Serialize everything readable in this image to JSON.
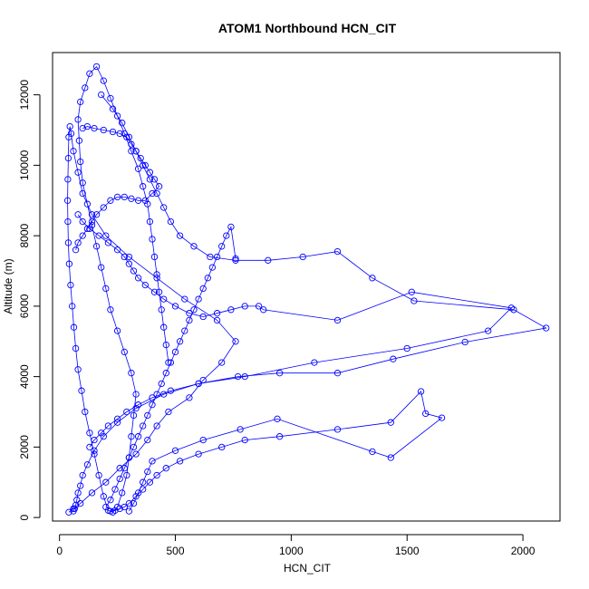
{
  "chart_data": {
    "type": "line",
    "title": "ATOM1 Northbound HCN_CIT",
    "xlabel": "HCN_CIT",
    "ylabel": "Altitude (m)",
    "xlim": [
      -30,
      2160
    ],
    "ylim": [
      -100,
      13200
    ],
    "x_ticks": [
      0,
      500,
      1000,
      1500,
      2000
    ],
    "y_ticks": [
      0,
      2000,
      4000,
      6000,
      8000,
      10000,
      12000
    ],
    "x_tick_labels": [
      "0",
      "500",
      "1000",
      "1500",
      "2000"
    ],
    "y_tick_labels": [
      "0",
      "2000",
      "4000",
      "6000",
      "8000",
      "10000",
      "12000"
    ],
    "grid": false,
    "legend": "none",
    "series_color": "#0000ff",
    "marker": "open-circle",
    "series": [
      {
        "x": [
          40,
          60,
          90,
          140,
          200,
          260,
          330,
          380,
          420,
          470,
          560,
          620,
          700,
          760,
          680,
          540,
          420,
          300,
          200,
          140,
          100,
          80,
          60,
          50,
          45,
          40,
          38,
          36,
          35,
          36,
          38,
          42,
          48,
          55,
          62,
          70,
          80,
          95,
          110,
          130,
          150,
          170,
          190,
          210,
          230,
          250,
          270,
          290,
          300,
          310,
          320,
          330,
          310,
          280,
          250,
          220,
          200,
          180,
          160,
          140,
          120,
          100,
          90,
          85,
          80,
          90,
          110,
          130,
          160,
          190,
          220,
          250,
          280,
          310,
          340,
          360,
          380,
          390,
          400,
          410,
          420,
          430,
          440,
          450,
          460,
          470
        ],
        "y": [
          150,
          250,
          400,
          700,
          1000,
          1400,
          1800,
          2200,
          2600,
          3000,
          3400,
          3900,
          4400,
          5000,
          5600,
          6200,
          6800,
          7400,
          8000,
          8600,
          9200,
          9800,
          10400,
          10900,
          11100,
          10800,
          10200,
          9600,
          9000,
          8400,
          7800,
          7200,
          6600,
          6000,
          5400,
          4800,
          4200,
          3600,
          3000,
          2400,
          1800,
          1200,
          600,
          200,
          150,
          300,
          700,
          1200,
          1700,
          2300,
          2900,
          3500,
          4100,
          4700,
          5300,
          5900,
          6500,
          7100,
          7700,
          8300,
          8900,
          9500,
          10100,
          10700,
          11300,
          11800,
          12200,
          12600,
          12800,
          12400,
          11900,
          11400,
          10900,
          10400,
          9900,
          9400,
          8900,
          8400,
          7900,
          7400,
          6900,
          6400,
          5900,
          5400,
          4900,
          4400
        ]
      },
      {
        "x": [
          180,
          230,
          270,
          300,
          330,
          360,
          390,
          420,
          450,
          480,
          520,
          580,
          650,
          760,
          900,
          1050,
          1200,
          1350,
          1530,
          1960,
          2100,
          1750,
          1440,
          1200,
          950,
          770,
          600,
          450,
          330,
          250,
          190,
          150,
          120,
          100,
          90,
          80,
          75,
          70,
          65,
          60
        ],
        "y": [
          12000,
          11600,
          11200,
          10800,
          10400,
          10000,
          9600,
          9200,
          8800,
          8400,
          8000,
          7700,
          7400,
          7300,
          7300,
          7400,
          7550,
          6800,
          6150,
          5900,
          5380,
          4980,
          4500,
          4100,
          4100,
          4000,
          3800,
          3500,
          3100,
          2700,
          2300,
          1900,
          1500,
          1200,
          900,
          700,
          500,
          350,
          250,
          180
        ]
      },
      {
        "x": [
          300,
          320,
          340,
          360,
          380,
          400,
          500,
          620,
          780,
          940,
          1350,
          1430,
          1650,
          1580,
          1560,
          1430,
          1200,
          950,
          800,
          700,
          600,
          520,
          460,
          420,
          390,
          360,
          330,
          300,
          280,
          260,
          240,
          220
        ],
        "y": [
          180,
          400,
          700,
          1000,
          1300,
          1600,
          1900,
          2200,
          2500,
          2800,
          1870,
          1700,
          2830,
          2950,
          3580,
          2700,
          2500,
          2300,
          2200,
          2000,
          1800,
          1600,
          1400,
          1200,
          1000,
          800,
          600,
          400,
          300,
          250,
          200,
          180
        ]
      },
      {
        "x": [
          80,
          100,
          130,
          170,
          210,
          250,
          280,
          300,
          320,
          340,
          370,
          410,
          450,
          500,
          560,
          620,
          680,
          740,
          800,
          860,
          880,
          1200,
          1520,
          1950,
          1850,
          1500,
          1100,
          800,
          600,
          480,
          400,
          340,
          290,
          250,
          210,
          180,
          150,
          130
        ],
        "y": [
          8600,
          8400,
          8200,
          8000,
          7800,
          7600,
          7400,
          7200,
          7000,
          6800,
          6600,
          6400,
          6200,
          6000,
          5800,
          5700,
          5800,
          5900,
          6000,
          6000,
          5900,
          5600,
          6400,
          5950,
          5300,
          4800,
          4400,
          4000,
          3800,
          3600,
          3400,
          3200,
          3000,
          2800,
          2600,
          2400,
          2200,
          2000
        ]
      },
      {
        "x": [
          100,
          120,
          150,
          190,
          230,
          260,
          290,
          310,
          330,
          350,
          370,
          390,
          410,
          430,
          400,
          370,
          340,
          310,
          280,
          250,
          220,
          190,
          160,
          140,
          120,
          100,
          80,
          70
        ],
        "y": [
          11050,
          11100,
          11050,
          11000,
          10950,
          10900,
          10800,
          10600,
          10400,
          10200,
          10000,
          9800,
          9600,
          9400,
          9200,
          9000,
          9000,
          9050,
          9100,
          9100,
          9000,
          8800,
          8600,
          8400,
          8200,
          8000,
          7800,
          7600
        ]
      },
      {
        "x": [
          200,
          220,
          240,
          260,
          280,
          300,
          320,
          340,
          360,
          380,
          400,
          420,
          440,
          460,
          480,
          500,
          520,
          540,
          560,
          580,
          600,
          620,
          640,
          660,
          680,
          700,
          720,
          740,
          760
        ],
        "y": [
          300,
          500,
          800,
          1100,
          1400,
          1700,
          2000,
          2300,
          2600,
          2900,
          3200,
          3500,
          3800,
          4100,
          4400,
          4700,
          5000,
          5300,
          5600,
          5900,
          6200,
          6500,
          6800,
          7100,
          7400,
          7700,
          8000,
          8250,
          7350
        ]
      }
    ]
  }
}
